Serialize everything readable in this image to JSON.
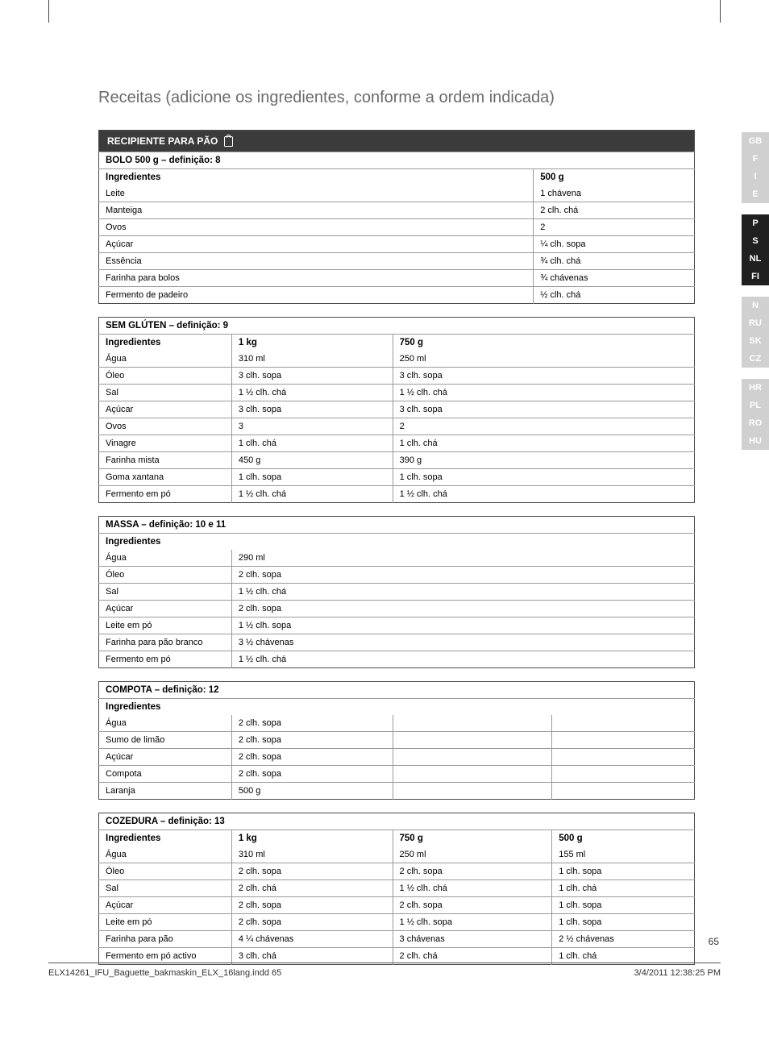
{
  "page_title": "Receitas (adicione os ingredientes, conforme a ordem indicada)",
  "page_number": "65",
  "footer_left": "ELX14261_IFU_Baguette_bakmaskin_ELX_16lang.indd   65",
  "footer_right": "3/4/2011   12:38:25 PM",
  "sidebar": {
    "tabs": [
      {
        "label": "GB",
        "state": "inactive"
      },
      {
        "label": "F",
        "state": "inactive"
      },
      {
        "label": "I",
        "state": "inactive"
      },
      {
        "label": "E",
        "state": "inactive"
      },
      {
        "label": "",
        "state": "gap"
      },
      {
        "label": "P",
        "state": "active"
      },
      {
        "label": "S",
        "state": "active"
      },
      {
        "label": "NL",
        "state": "active"
      },
      {
        "label": "FI",
        "state": "active"
      },
      {
        "label": "",
        "state": "gap"
      },
      {
        "label": "N",
        "state": "inactive"
      },
      {
        "label": "RU",
        "state": "inactive"
      },
      {
        "label": "SK",
        "state": "inactive"
      },
      {
        "label": "CZ",
        "state": "inactive"
      },
      {
        "label": "",
        "state": "gap"
      },
      {
        "label": "HR",
        "state": "inactive"
      },
      {
        "label": "PL",
        "state": "inactive"
      },
      {
        "label": "RO",
        "state": "inactive"
      },
      {
        "label": "HU",
        "state": "inactive"
      }
    ]
  },
  "t1": {
    "banner": "RECIPIENTE PARA PÃO",
    "sub": "BOLO 500 g – definição: 8",
    "header": [
      "Ingredientes",
      "500 g"
    ],
    "rows": [
      [
        "Leite",
        "1 chávena"
      ],
      [
        "Manteiga",
        "2 clh. chá"
      ],
      [
        "Ovos",
        "2"
      ],
      [
        "Açúcar",
        "¼ clh. sopa"
      ],
      [
        "Essência",
        "¾ clh. chá"
      ],
      [
        "Farinha para bolos",
        "¾ chávenas"
      ],
      [
        "Fermento de padeiro",
        "½ clh. chá"
      ]
    ],
    "col_widths": [
      "540px",
      "200px"
    ]
  },
  "t2": {
    "sub": "SEM GLÚTEN – definição: 9",
    "header": [
      "Ingredientes",
      "1 kg",
      "750 g"
    ],
    "rows": [
      [
        "Água",
        "310 ml",
        "250 ml"
      ],
      [
        "Óleo",
        "3 clh. sopa",
        "3 clh. sopa"
      ],
      [
        "Sal",
        "1 ½ clh. chá",
        "1 ½ clh. chá"
      ],
      [
        "Açúcar",
        "3 clh. sopa",
        "3 clh. sopa"
      ],
      [
        "Ovos",
        "3",
        "2"
      ],
      [
        "Vinagre",
        "1 clh. chá",
        "1 clh. chá"
      ],
      [
        "Farinha mista",
        "450 g",
        "390 g"
      ],
      [
        "Goma xantana",
        "1 clh. sopa",
        "1 clh. sopa"
      ],
      [
        "Fermento em pó",
        "1 ½ clh. chá",
        "1 ½ clh. chá"
      ]
    ],
    "col_widths": [
      "165px",
      "200px",
      "375px"
    ]
  },
  "t3": {
    "sub": "MASSA – definição: 10 e 11",
    "header": [
      "Ingredientes"
    ],
    "rows": [
      [
        "Água",
        "290 ml"
      ],
      [
        "Óleo",
        "2 clh. sopa"
      ],
      [
        "Sal",
        "1 ½ clh. chá"
      ],
      [
        "Açúcar",
        "2 clh. sopa"
      ],
      [
        "Leite em pó",
        "1 ½ clh. sopa"
      ],
      [
        "Farinha para pão branco",
        "3 ½ chávenas"
      ],
      [
        "Fermento em pó",
        "1 ½ clh. chá"
      ]
    ],
    "col_widths": [
      "165px",
      "575px"
    ]
  },
  "t4": {
    "sub": "COMPOTA – definição: 12",
    "header": [
      "Ingredientes"
    ],
    "rows": [
      [
        "Água",
        "2 clh. sopa",
        "",
        ""
      ],
      [
        "Sumo de limão",
        "2 clh. sopa",
        "",
        ""
      ],
      [
        "Açúcar",
        "2 clh. sopa",
        "",
        ""
      ],
      [
        "Compota",
        "2 clh. sopa",
        "",
        ""
      ],
      [
        "Laranja",
        "500 g",
        "",
        ""
      ]
    ],
    "col_widths": [
      "165px",
      "200px",
      "198px",
      "177px"
    ]
  },
  "t5": {
    "sub": "COZEDURA – definição: 13",
    "header": [
      "Ingredientes",
      "1 kg",
      "750 g",
      "500 g"
    ],
    "rows": [
      [
        "Água",
        "310 ml",
        "250 ml",
        "155 ml"
      ],
      [
        "Óleo",
        "2 clh. sopa",
        "2 clh. sopa",
        "1 clh. sopa"
      ],
      [
        "Sal",
        "2 clh. chá",
        "1 ½ clh. chá",
        "1 clh. chá"
      ],
      [
        "Açúcar",
        "2 clh. sopa",
        "2 clh. sopa",
        "1 clh. sopa"
      ],
      [
        "Leite em pó",
        "2 clh. sopa",
        "1 ½ clh. sopa",
        "1 clh. sopa"
      ],
      [
        "Farinha para pão",
        "4 ¼ chávenas",
        "3 chávenas",
        "2 ½ chávenas"
      ],
      [
        "Fermento em pó activo",
        "3 clh. chá",
        "2 clh. chá",
        "1 clh. chá"
      ]
    ],
    "col_widths": [
      "165px",
      "200px",
      "198px",
      "177px"
    ]
  }
}
